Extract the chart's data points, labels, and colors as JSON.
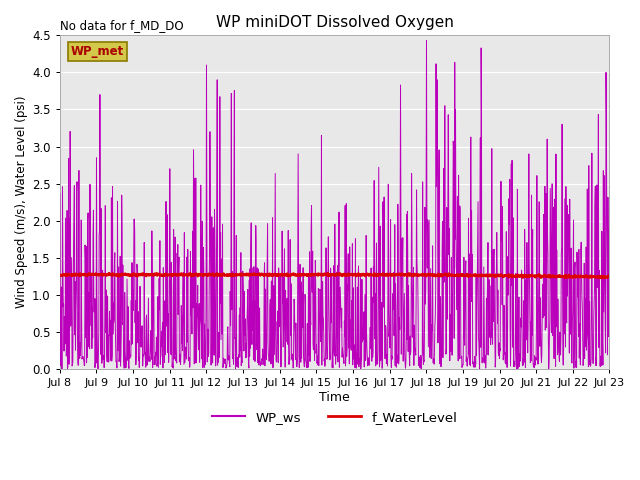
{
  "title": "WP miniDOT Dissolved Oxygen",
  "top_left_text": "No data for f_MD_DO",
  "ylabel": "Wind Speed (m/s), Water Level (psi)",
  "xlabel": "Time",
  "legend_label1": "WP_ws",
  "legend_label2": "f_WaterLevel",
  "legend_box_label": "WP_met",
  "legend_box_fc": "#d4c84a",
  "legend_box_ec": "#8a7a00",
  "legend_box_text_color": "#aa0000",
  "line1_color": "#bb00bb",
  "line2_color": "#dd0000",
  "ylim": [
    0.0,
    4.5
  ],
  "background_color": "#e8e8e8",
  "xtick_labels": [
    "Jul 8",
    "Jul 9",
    "Jul 10",
    "Jul 11",
    "Jul 12",
    "Jul 13",
    "Jul 14",
    "Jul 15",
    "Jul 16",
    "Jul 17",
    "Jul 18",
    "Jul 19",
    "Jul 20",
    "Jul 21",
    "Jul 22",
    "Jul 23"
  ],
  "ytick_values": [
    0.0,
    0.5,
    1.0,
    1.5,
    2.0,
    2.5,
    3.0,
    3.5,
    4.0,
    4.5
  ],
  "water_level_base": 1.27,
  "figsize": [
    6.4,
    4.8
  ],
  "dpi": 100
}
